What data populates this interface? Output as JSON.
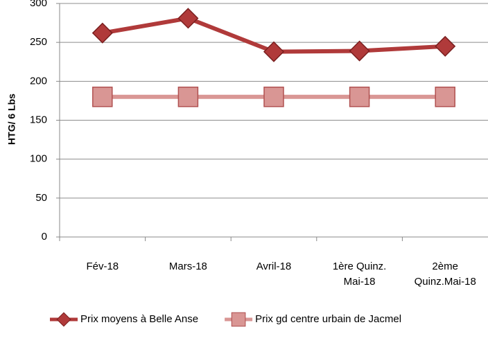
{
  "chart_data": {
    "type": "line",
    "y_label": "HTG/ 6 Lbs",
    "categories": [
      "Fév-18",
      "Mars-18",
      "Avril-18",
      "1ère Quinz. Mai-18",
      "2ème Quinz.Mai-18"
    ],
    "series": [
      {
        "name": "Prix moyens à Belle Anse",
        "color": "#b03a3a",
        "marker": "diamond",
        "values": [
          262,
          281,
          238,
          239,
          245
        ]
      },
      {
        "name": "Prix gd centre urbain de Jacmel",
        "color": "#d99694",
        "marker": "square",
        "values": [
          180,
          180,
          180,
          180,
          180
        ]
      }
    ],
    "ylim": [
      0,
      300
    ],
    "yticks": [
      0,
      50,
      100,
      150,
      200,
      250,
      300
    ],
    "grid": true,
    "legend": "bottom"
  }
}
